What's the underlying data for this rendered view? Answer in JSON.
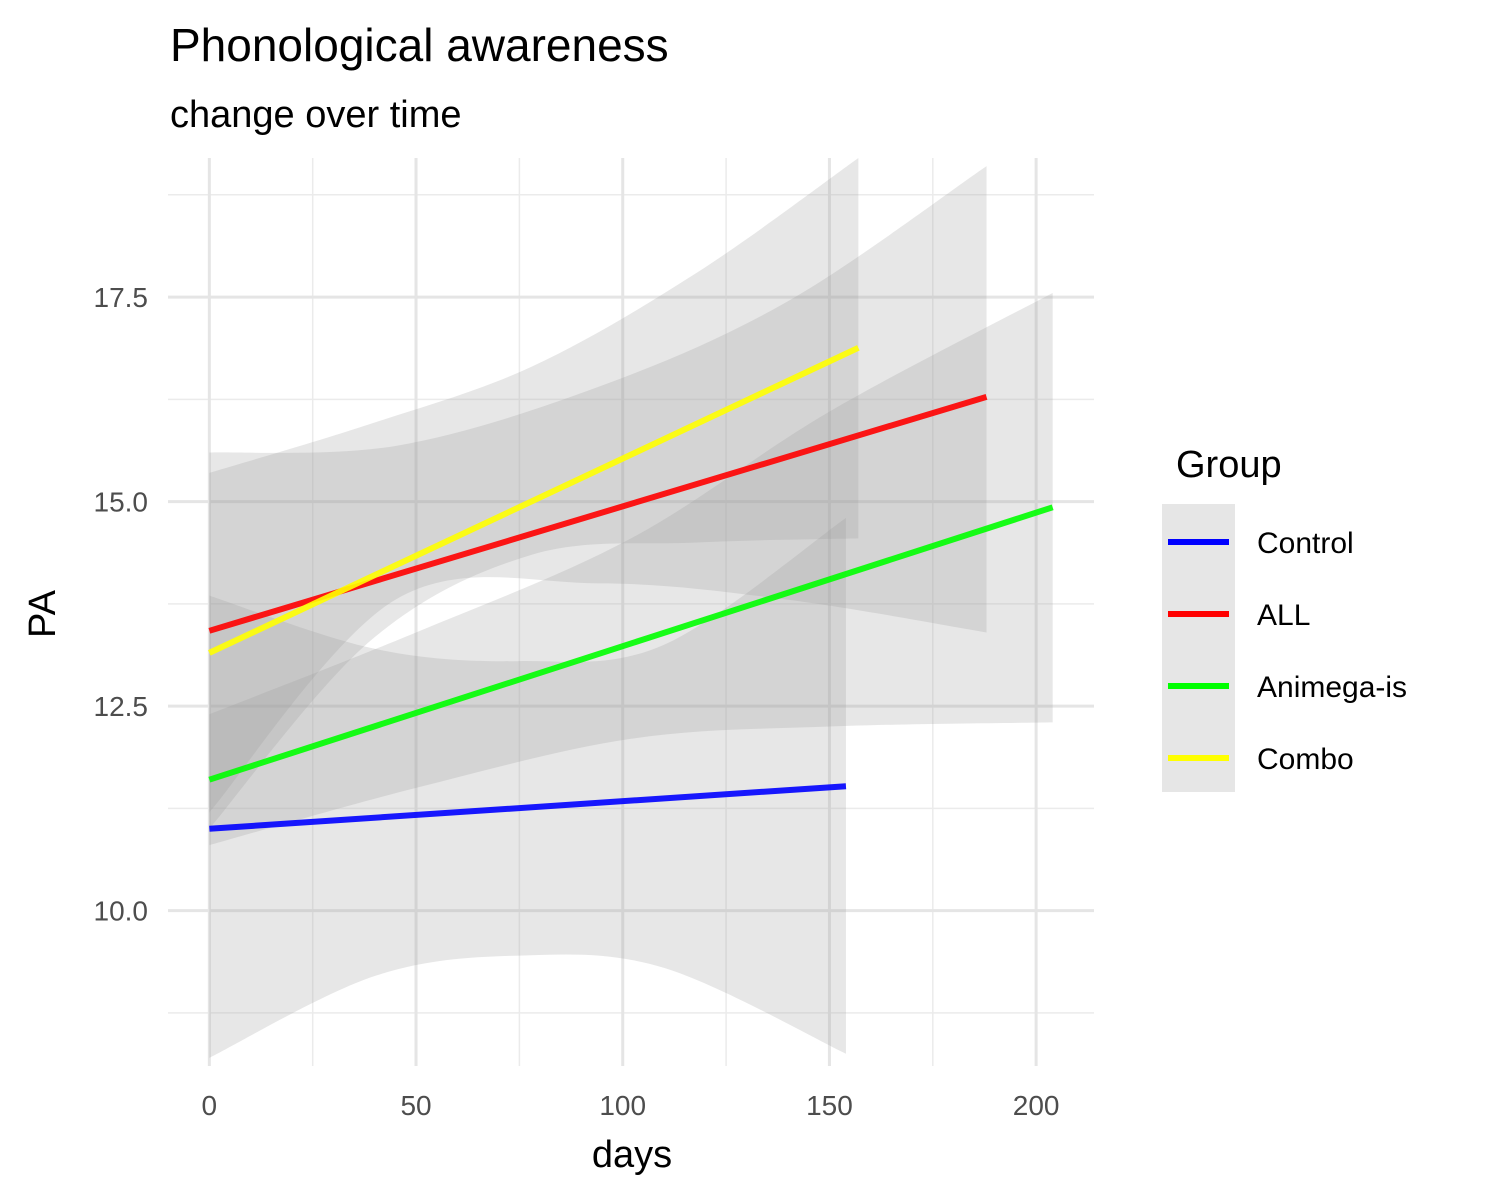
{
  "chart_data": {
    "type": "line",
    "title": "Phonological awareness",
    "subtitle": "change over time",
    "xlabel": "days",
    "ylabel": "PA",
    "xlim": [
      -10,
      214
    ],
    "ylim": [
      8.1,
      19.2
    ],
    "x_ticks": [
      0,
      50,
      100,
      150,
      200
    ],
    "y_ticks": [
      10.0,
      12.5,
      15.0,
      17.5
    ],
    "x_tick_labels": [
      "0",
      "50",
      "100",
      "150",
      "200"
    ],
    "y_tick_labels": [
      "10.0",
      "12.5",
      "15.0",
      "17.5"
    ],
    "grid": true,
    "legend": {
      "title": "Group",
      "position": "right"
    },
    "series": [
      {
        "name": "Control",
        "color": "#0000ff",
        "x": [
          0,
          154
        ],
        "y": [
          11.0,
          11.52
        ],
        "band": {
          "x": [
            0,
            40,
            75,
            110,
            154
          ],
          "lower": [
            8.2,
            9.2,
            9.45,
            9.3,
            8.25
          ],
          "upper": [
            13.85,
            13.2,
            13.05,
            13.25,
            14.8
          ]
        }
      },
      {
        "name": "ALL",
        "color": "#ff0000",
        "x": [
          0,
          188
        ],
        "y": [
          13.42,
          16.28
        ],
        "band": {
          "x": [
            0,
            45,
            94,
            140,
            188
          ],
          "lower": [
            11.2,
            13.8,
            14.0,
            13.8,
            13.4
          ],
          "upper": [
            15.6,
            15.68,
            16.4,
            17.45,
            19.1
          ]
        }
      },
      {
        "name": "Animega-is",
        "color": "#00ff00",
        "x": [
          0,
          204
        ],
        "y": [
          11.6,
          14.93
        ],
        "band": {
          "x": [
            0,
            50,
            102,
            150,
            204
          ],
          "lower": [
            10.8,
            11.5,
            12.1,
            12.25,
            12.3
          ],
          "upper": [
            12.4,
            13.4,
            14.55,
            16.1,
            17.55
          ]
        }
      },
      {
        "name": "Combo",
        "color": "#ffff00",
        "x": [
          0,
          157
        ],
        "y": [
          13.15,
          16.88
        ],
        "band": {
          "x": [
            0,
            39,
            78,
            118,
            157
          ],
          "lower": [
            11.0,
            13.3,
            14.35,
            14.5,
            14.55
          ],
          "upper": [
            15.35,
            15.95,
            16.65,
            17.8,
            19.2
          ]
        }
      }
    ]
  }
}
